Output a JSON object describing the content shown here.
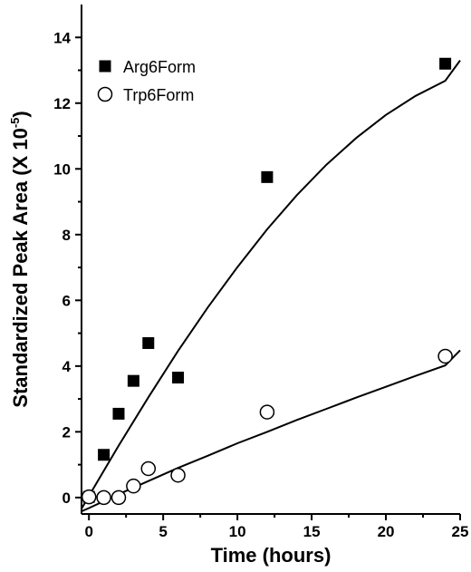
{
  "chart_data": {
    "type": "scatter",
    "title": "",
    "xlabel": "Time (hours)",
    "ylabel_main": "Standardized Peak Area (X 10",
    "ylabel_exp": "-5",
    "ylabel_close": ")",
    "xlim": [
      -0.5,
      25
    ],
    "ylim": [
      -0.5,
      15
    ],
    "xticks": [
      0,
      5,
      10,
      15,
      20,
      25
    ],
    "yticks": [
      0,
      2,
      4,
      6,
      8,
      10,
      12,
      14
    ],
    "grid": false,
    "legend_position": "top-left",
    "series": [
      {
        "name": "Arg6Form",
        "marker": "filled-square",
        "color": "#000000",
        "x": [
          0,
          1,
          2,
          3,
          4,
          6,
          12,
          24
        ],
        "y": [
          0.02,
          1.3,
          2.55,
          3.55,
          4.7,
          3.65,
          9.75,
          13.2
        ],
        "fit_x": [
          -0.5,
          0,
          2,
          4,
          6,
          8,
          10,
          12,
          14,
          16,
          18,
          20,
          22,
          24,
          25
        ],
        "fit_y": [
          -0.34,
          0.05,
          1.58,
          3.05,
          4.46,
          5.78,
          7.01,
          8.16,
          9.2,
          10.13,
          10.94,
          11.64,
          12.22,
          12.68,
          13.3
        ]
      },
      {
        "name": "Trp6Form",
        "marker": "open-circle",
        "color": "#000000",
        "x": [
          0,
          1,
          2,
          3,
          4,
          6,
          12,
          24
        ],
        "y": [
          0.02,
          0.0,
          0.0,
          0.35,
          0.88,
          0.68,
          2.6,
          4.3
        ],
        "fit_x": [
          -0.5,
          0,
          2,
          4,
          6,
          8,
          10,
          12,
          14,
          16,
          18,
          20,
          22,
          24,
          25
        ],
        "fit_y": [
          -0.42,
          -0.32,
          0.1,
          0.5,
          0.9,
          1.27,
          1.65,
          2.0,
          2.36,
          2.7,
          3.04,
          3.37,
          3.7,
          4.02,
          4.48
        ]
      }
    ]
  }
}
